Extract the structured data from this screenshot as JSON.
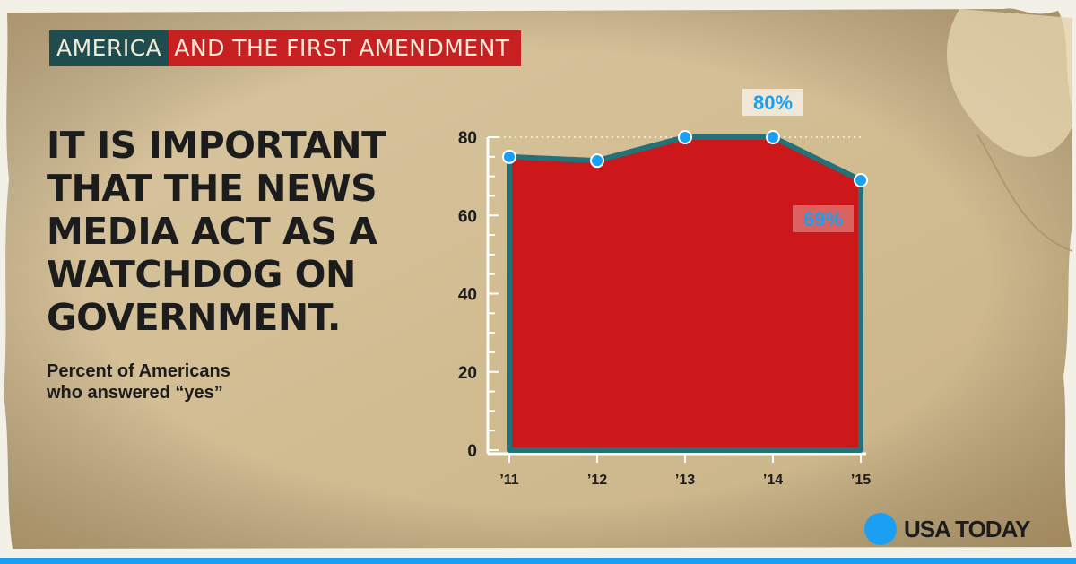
{
  "header": {
    "tag_left": "AMERICA",
    "tag_right": "AND THE FIRST AMENDMENT"
  },
  "headline_lines": [
    "IT IS IMPORTANT",
    "THAT THE NEWS",
    "MEDIA ACT AS A",
    "WATCHDOG ON",
    "GOVERNMENT."
  ],
  "subtitle_lines": [
    "Percent of Americans",
    "who answered “yes”"
  ],
  "brand": {
    "name": "USA TODAY",
    "color": "#1a9ff2"
  },
  "colors": {
    "area_fill": "#cc1218",
    "line": "#1f6f78",
    "marker": "#1a9ff2",
    "header_teal": "#1f4d4f",
    "header_red": "#c62022"
  },
  "chart_data": {
    "type": "area",
    "x": [
      "’11",
      "’12",
      "’13",
      "’14",
      "’15"
    ],
    "values": [
      75,
      74,
      80,
      80,
      69
    ],
    "ylim": [
      0,
      80
    ],
    "yticks": [
      0,
      20,
      40,
      60,
      80
    ],
    "annotations": [
      {
        "index": 3,
        "label": "80%"
      },
      {
        "index": 4,
        "label": "69%"
      }
    ],
    "title": "",
    "xlabel": "",
    "ylabel": "",
    "grid": false
  }
}
